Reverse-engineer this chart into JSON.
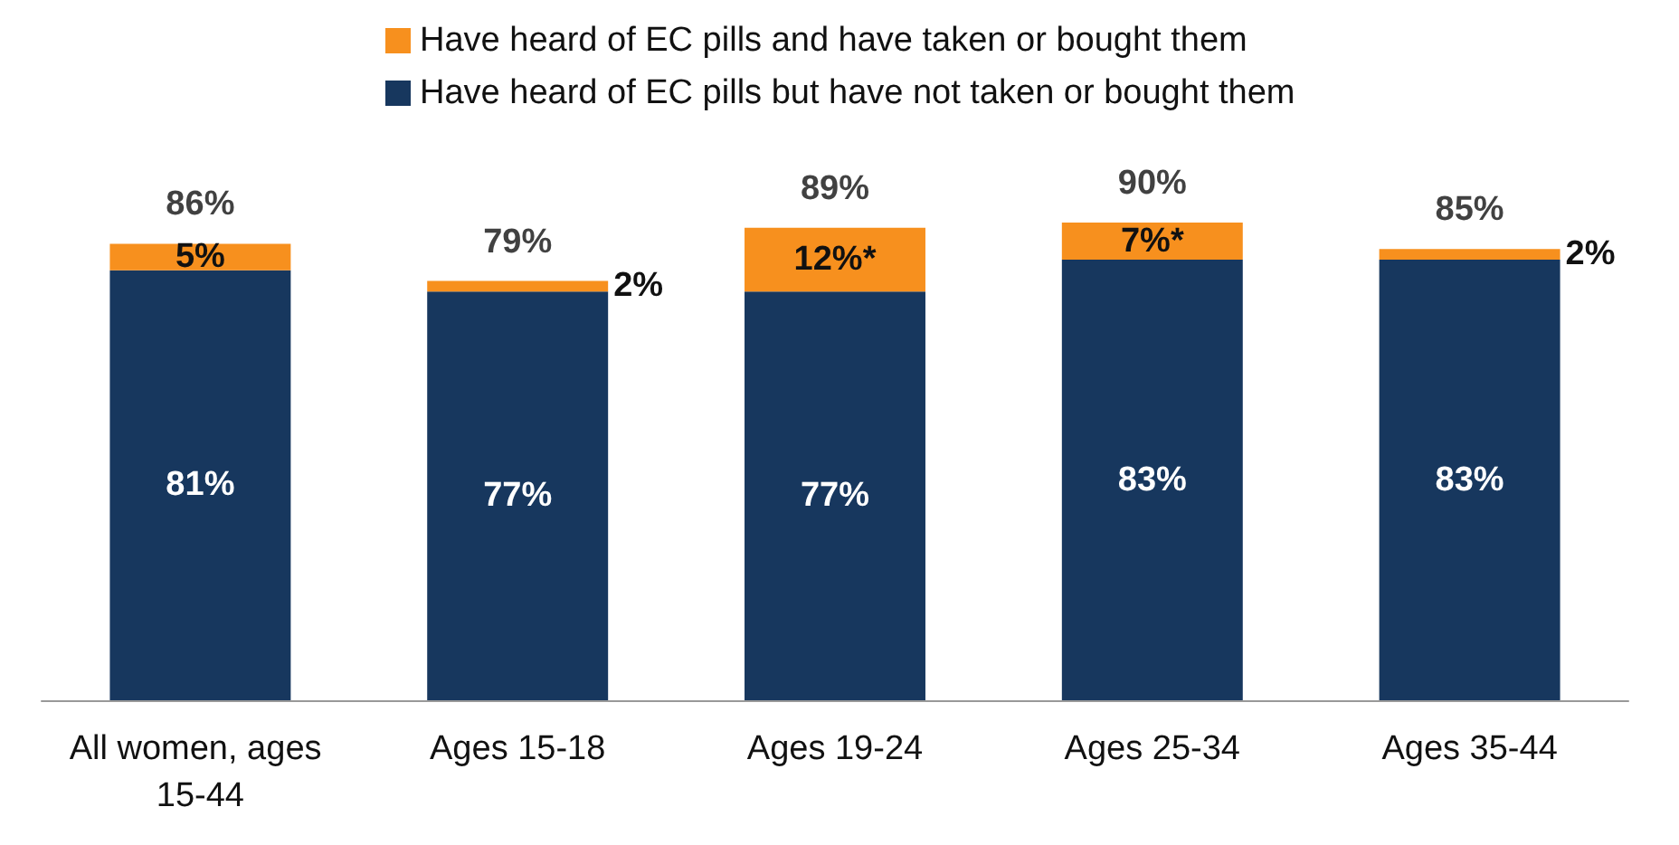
{
  "chart_data": {
    "type": "bar",
    "stacked": true,
    "categories": [
      "All women, ages 15-44",
      "Ages 15-18",
      "Ages 19-24",
      "Ages 25-34",
      "Ages 35-44"
    ],
    "series": [
      {
        "name": "Have heard of EC pills but have not taken or bought them",
        "color": "#17375e",
        "values": [
          81,
          77,
          77,
          83,
          83
        ],
        "value_labels": [
          "81%",
          "77%",
          "77%",
          "83%",
          "83%"
        ]
      },
      {
        "name": "Have heard of EC pills and have taken or bought them",
        "color": "#f7901e",
        "values": [
          5,
          2,
          12,
          7,
          2
        ],
        "value_labels": [
          "5%",
          "2%",
          "12%*",
          "7%*",
          "2%"
        ]
      }
    ],
    "totals": [
      "86%",
      "79%",
      "89%",
      "90%",
      "85%"
    ],
    "legend": "top",
    "grid": false
  }
}
